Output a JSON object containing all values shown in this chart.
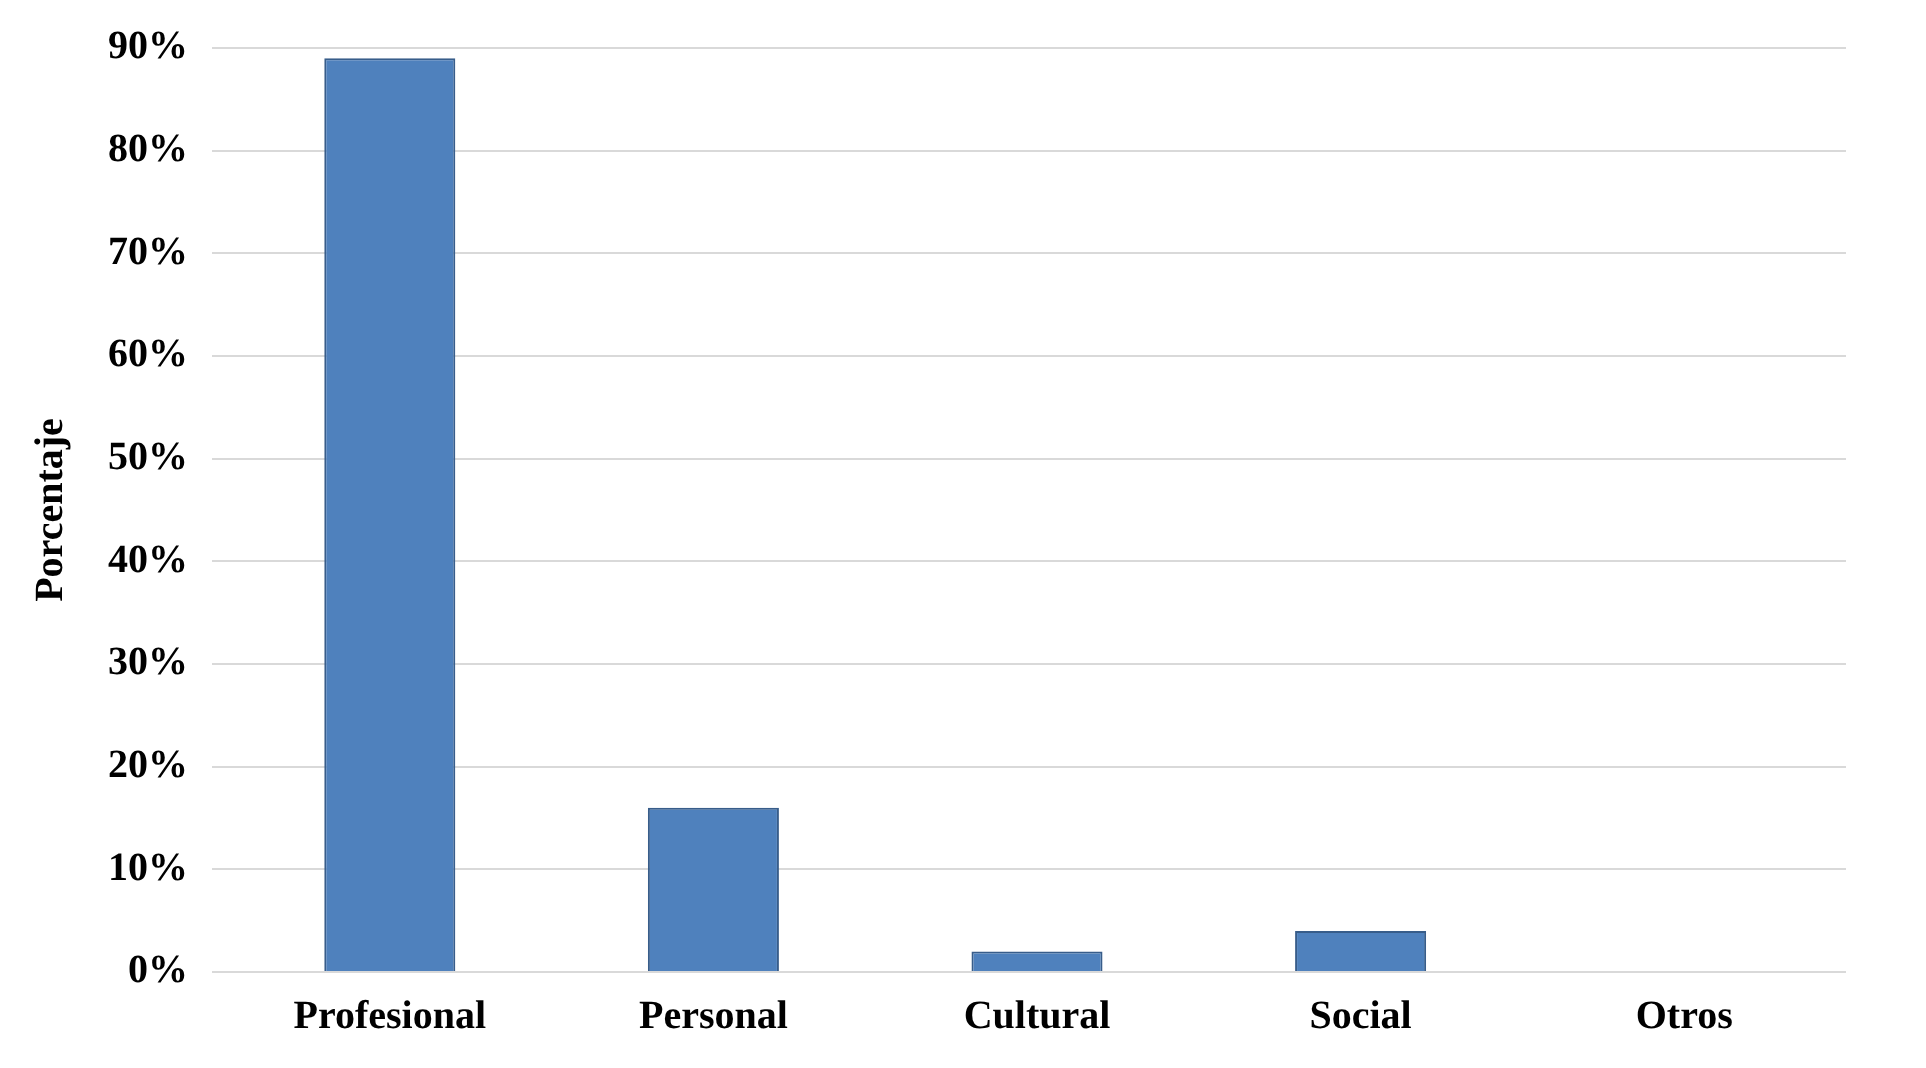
{
  "chart_data": {
    "type": "bar",
    "ylabel": "Porcentaje",
    "categories": [
      "Profesional",
      "Personal",
      "Cultural",
      "Social",
      "Otros"
    ],
    "values": [
      89,
      16,
      2,
      4,
      0
    ],
    "color": "#4f81bd",
    "ylim": [
      0,
      90
    ],
    "yticks": [
      {
        "value": 0,
        "label": "0%"
      },
      {
        "value": 10,
        "label": "10%"
      },
      {
        "value": 20,
        "label": "20%"
      },
      {
        "value": 30,
        "label": "30%"
      },
      {
        "value": 40,
        "label": "40%"
      },
      {
        "value": 50,
        "label": "50%"
      },
      {
        "value": 60,
        "label": "60%"
      },
      {
        "value": 70,
        "label": "70%"
      },
      {
        "value": 80,
        "label": "80%"
      },
      {
        "value": 90,
        "label": "90%"
      }
    ],
    "grid": "y",
    "legend": false
  }
}
